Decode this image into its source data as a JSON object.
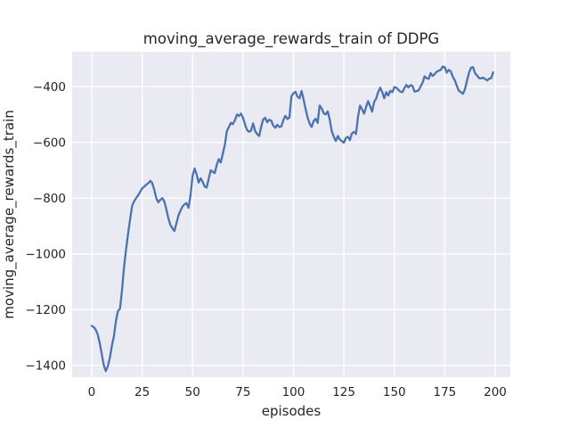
{
  "chart_data": {
    "type": "line",
    "title": "moving_average_rewards_train of DDPG",
    "xlabel": "episodes",
    "ylabel": "moving_average_rewards_train",
    "x_ticks": [
      0,
      25,
      50,
      75,
      100,
      125,
      150,
      175,
      200
    ],
    "y_ticks": [
      -400,
      -600,
      -800,
      -1000,
      -1200,
      -1400
    ],
    "xlim": [
      -9.7,
      207.5
    ],
    "ylim": [
      -1442,
      -275
    ],
    "grid": true,
    "legend_position": "none",
    "colors": {
      "line": "#4c72b0",
      "axes_background": "#eaeaf2",
      "grid": "#ffffff",
      "text": "#262626"
    },
    "series": [
      {
        "name": "moving_average_rewards_train",
        "x_start": 0,
        "x_step": 1,
        "y": [
          -1258,
          -1262,
          -1272,
          -1290,
          -1320,
          -1360,
          -1400,
          -1420,
          -1402,
          -1372,
          -1330,
          -1295,
          -1240,
          -1205,
          -1197,
          -1130,
          -1050,
          -985,
          -930,
          -878,
          -828,
          -812,
          -800,
          -790,
          -778,
          -765,
          -759,
          -752,
          -747,
          -738,
          -746,
          -770,
          -800,
          -815,
          -806,
          -800,
          -812,
          -840,
          -872,
          -896,
          -908,
          -918,
          -890,
          -862,
          -845,
          -830,
          -822,
          -818,
          -835,
          -788,
          -720,
          -694,
          -715,
          -744,
          -729,
          -742,
          -758,
          -762,
          -730,
          -700,
          -706,
          -710,
          -680,
          -660,
          -672,
          -640,
          -608,
          -560,
          -545,
          -530,
          -535,
          -520,
          -500,
          -506,
          -497,
          -512,
          -536,
          -556,
          -562,
          -558,
          -532,
          -560,
          -570,
          -577,
          -545,
          -518,
          -512,
          -528,
          -519,
          -522,
          -540,
          -548,
          -537,
          -545,
          -543,
          -520,
          -505,
          -516,
          -511,
          -435,
          -424,
          -419,
          -436,
          -442,
          -416,
          -445,
          -480,
          -510,
          -532,
          -545,
          -524,
          -515,
          -530,
          -468,
          -478,
          -496,
          -500,
          -489,
          -520,
          -560,
          -580,
          -595,
          -577,
          -590,
          -596,
          -601,
          -584,
          -580,
          -592,
          -568,
          -562,
          -570,
          -508,
          -468,
          -481,
          -497,
          -474,
          -452,
          -470,
          -490,
          -455,
          -443,
          -420,
          -404,
          -420,
          -442,
          -420,
          -432,
          -415,
          -420,
          -402,
          -404,
          -412,
          -418,
          -420,
          -405,
          -394,
          -403,
          -395,
          -397,
          -418,
          -416,
          -414,
          -400,
          -386,
          -363,
          -370,
          -372,
          -352,
          -362,
          -355,
          -347,
          -343,
          -340,
          -328,
          -331,
          -350,
          -340,
          -346,
          -365,
          -378,
          -398,
          -415,
          -420,
          -426,
          -410,
          -380,
          -350,
          -333,
          -330,
          -352,
          -360,
          -370,
          -371,
          -368,
          -373,
          -378,
          -372,
          -370,
          -349
        ]
      }
    ]
  }
}
